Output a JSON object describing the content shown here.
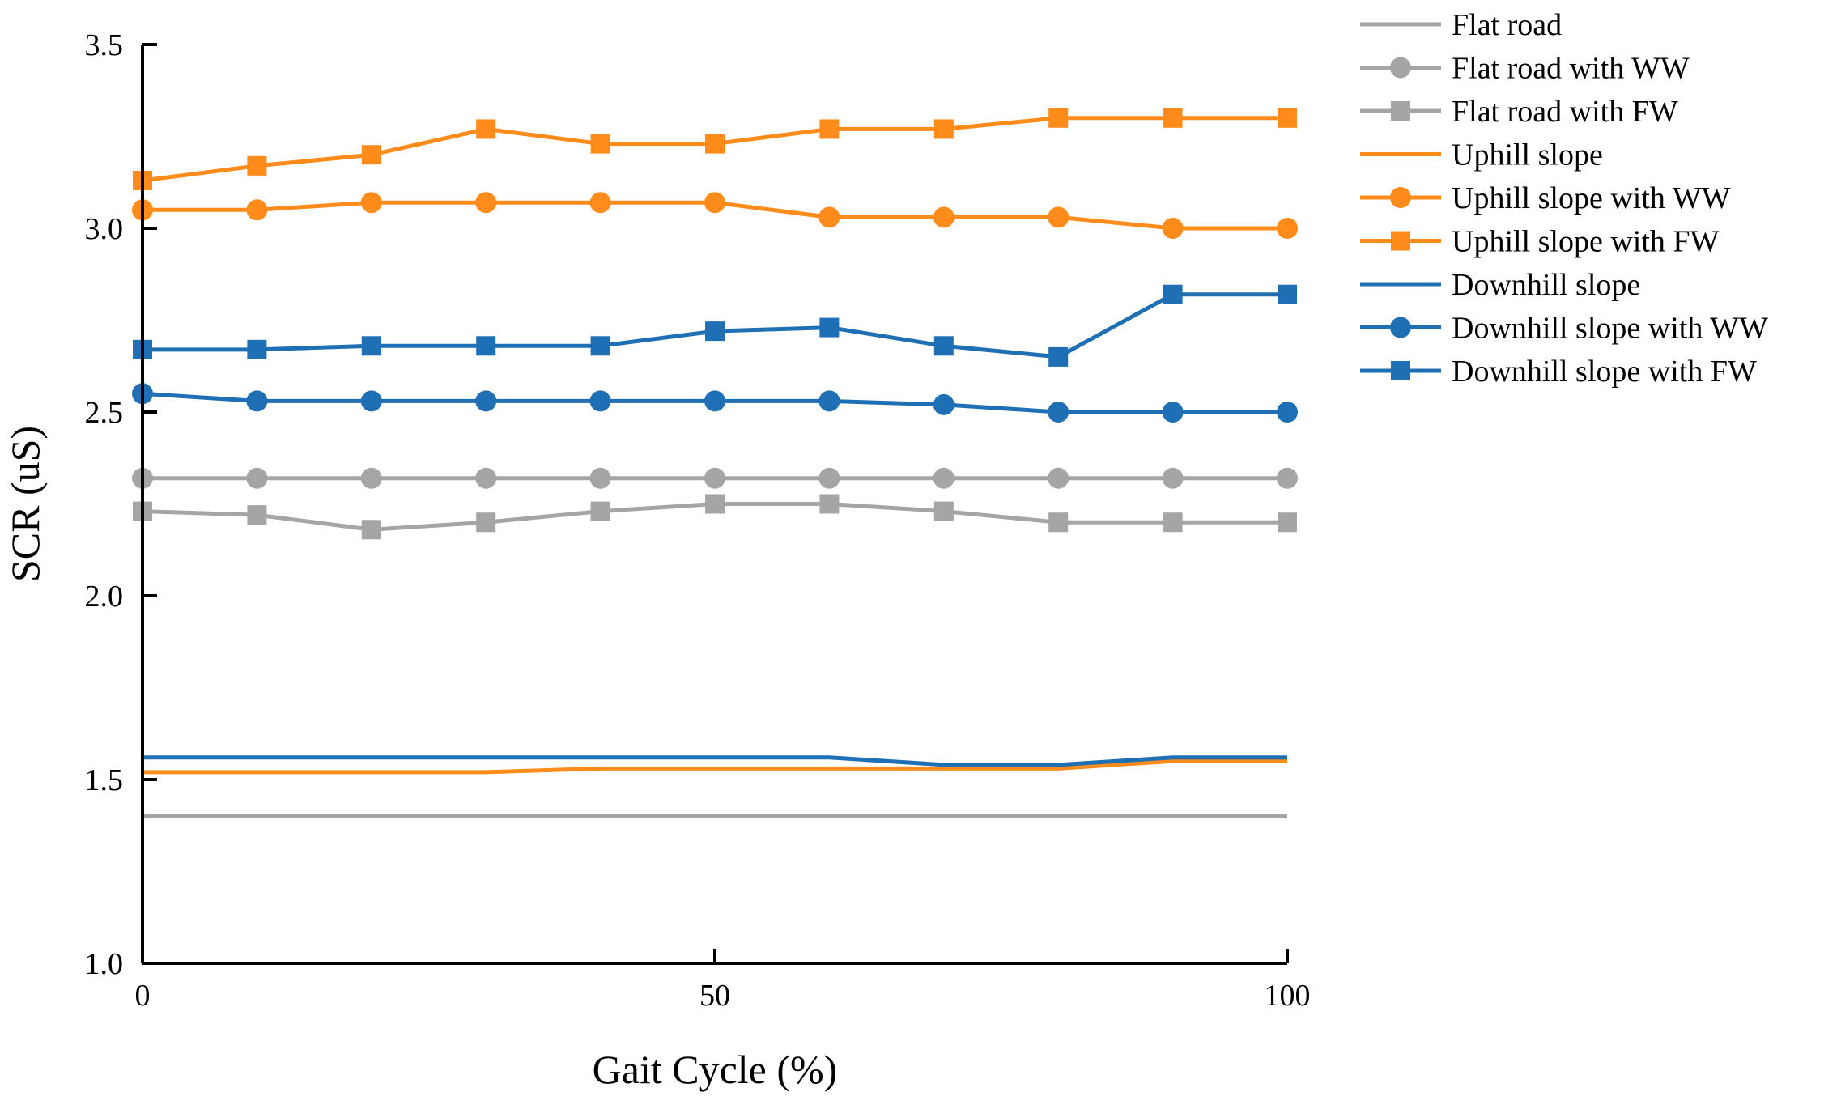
{
  "chart_data": {
    "type": "line",
    "title": "",
    "xlabel": "Gait Cycle (%)",
    "ylabel": "SCR (uS)",
    "xlim": [
      0,
      100
    ],
    "ylim": [
      1.0,
      3.5
    ],
    "xticks": [
      0,
      50,
      100
    ],
    "xtick_labels": [
      "0",
      "50",
      "100"
    ],
    "yticks": [
      1.0,
      1.5,
      2.0,
      2.5,
      3.0,
      3.5
    ],
    "ytick_labels": [
      "1.0",
      "1.5",
      "2.0",
      "2.5",
      "3.0",
      "3.5"
    ],
    "grid": false,
    "legend_position": "right-top",
    "x": [
      0,
      10,
      20,
      30,
      40,
      50,
      60,
      70,
      80,
      90,
      100
    ],
    "series": [
      {
        "name": "Flat road",
        "color": "#A5A5A5",
        "marker": "none",
        "values": [
          1.4,
          1.4,
          1.4,
          1.4,
          1.4,
          1.4,
          1.4,
          1.4,
          1.4,
          1.4,
          1.4
        ]
      },
      {
        "name": "Flat road with WW",
        "color": "#A5A5A5",
        "marker": "circle",
        "values": [
          2.32,
          2.32,
          2.32,
          2.32,
          2.32,
          2.32,
          2.32,
          2.32,
          2.32,
          2.32,
          2.32
        ]
      },
      {
        "name": "Flat road with FW",
        "color": "#A5A5A5",
        "marker": "square",
        "values": [
          2.23,
          2.22,
          2.18,
          2.2,
          2.23,
          2.25,
          2.25,
          2.23,
          2.2,
          2.2,
          2.2
        ]
      },
      {
        "name": "Uphill slope",
        "color": "#FF8C1A",
        "marker": "none",
        "values": [
          1.52,
          1.52,
          1.52,
          1.52,
          1.53,
          1.53,
          1.53,
          1.53,
          1.53,
          1.55,
          1.55
        ]
      },
      {
        "name": "Uphill slope with WW",
        "color": "#FF8C1A",
        "marker": "circle",
        "values": [
          3.05,
          3.05,
          3.07,
          3.07,
          3.07,
          3.07,
          3.03,
          3.03,
          3.03,
          3.0,
          3.0
        ]
      },
      {
        "name": "Uphill slope with FW",
        "color": "#FF8C1A",
        "marker": "square",
        "values": [
          3.13,
          3.17,
          3.2,
          3.27,
          3.23,
          3.23,
          3.27,
          3.27,
          3.3,
          3.3,
          3.3
        ]
      },
      {
        "name": "Downhill slope",
        "color": "#1F6FB4",
        "marker": "none",
        "values": [
          1.56,
          1.56,
          1.56,
          1.56,
          1.56,
          1.56,
          1.56,
          1.54,
          1.54,
          1.56,
          1.56
        ]
      },
      {
        "name": "Downhill slope with WW",
        "color": "#1F6FB4",
        "marker": "circle",
        "values": [
          2.55,
          2.53,
          2.53,
          2.53,
          2.53,
          2.53,
          2.53,
          2.52,
          2.5,
          2.5,
          2.5
        ]
      },
      {
        "name": "Downhill slope with FW",
        "color": "#1F6FB4",
        "marker": "square",
        "values": [
          2.67,
          2.67,
          2.68,
          2.68,
          2.68,
          2.72,
          2.73,
          2.68,
          2.65,
          2.82,
          2.82
        ]
      }
    ]
  }
}
